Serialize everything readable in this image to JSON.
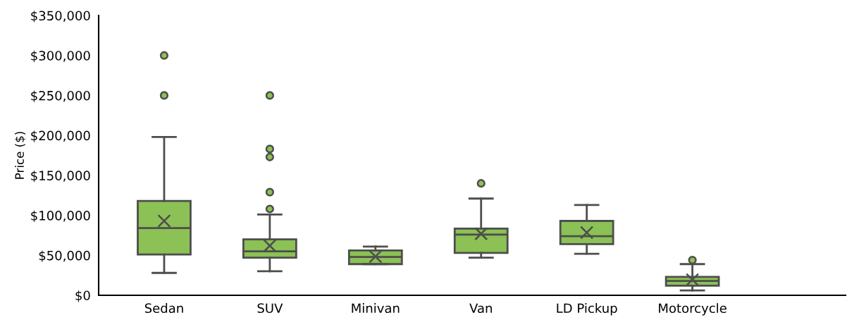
{
  "chart_data": {
    "type": "box",
    "ylabel": "Price ($)",
    "categories": [
      "Sedan",
      "SUV",
      "Minivan",
      "Van",
      "LD Pickup",
      "Motorcycle"
    ],
    "series": [
      {
        "color": "#8bc155",
        "boxes": [
          {
            "low": 28000,
            "q1": 51000,
            "median": 84000,
            "q3": 118000,
            "high": 198000,
            "mean": 93000,
            "outliers": [
              250000,
              300000
            ]
          },
          {
            "low": 30000,
            "q1": 47000,
            "median": 55000,
            "q3": 70000,
            "high": 101000,
            "mean": 62000,
            "outliers": [
              108000,
              129000,
              173000,
              183000,
              250000
            ]
          },
          {
            "low": 39000,
            "q1": 39000,
            "median": 48000,
            "q3": 56000,
            "high": 61000,
            "mean": 48500
          },
          {
            "low": 47000,
            "q1": 53000,
            "median": 76000,
            "q3": 83500,
            "high": 121000,
            "mean": 77000,
            "outliers": [
              140000
            ]
          },
          {
            "low": 52000,
            "q1": 64000,
            "median": 74000,
            "q3": 93000,
            "high": 113000,
            "mean": 78500
          },
          {
            "low": 6000,
            "q1": 12000,
            "median": 18000,
            "q3": 23000,
            "high": 39000,
            "mean": 19500,
            "outliers": [
              44000
            ]
          }
        ]
      }
    ],
    "ylim": [
      0,
      350000
    ],
    "yticks": [
      {
        "value": 0,
        "label": "$0"
      },
      {
        "value": 50000,
        "label": "$50,000"
      },
      {
        "value": 100000,
        "label": "$100,000"
      },
      {
        "value": 150000,
        "label": "$150,000"
      },
      {
        "value": 200000,
        "label": "$200,000"
      },
      {
        "value": 250000,
        "label": "$250,000"
      },
      {
        "value": 300000,
        "label": "$300,000"
      },
      {
        "value": 350000,
        "label": "$350,000"
      }
    ],
    "grid": false
  }
}
